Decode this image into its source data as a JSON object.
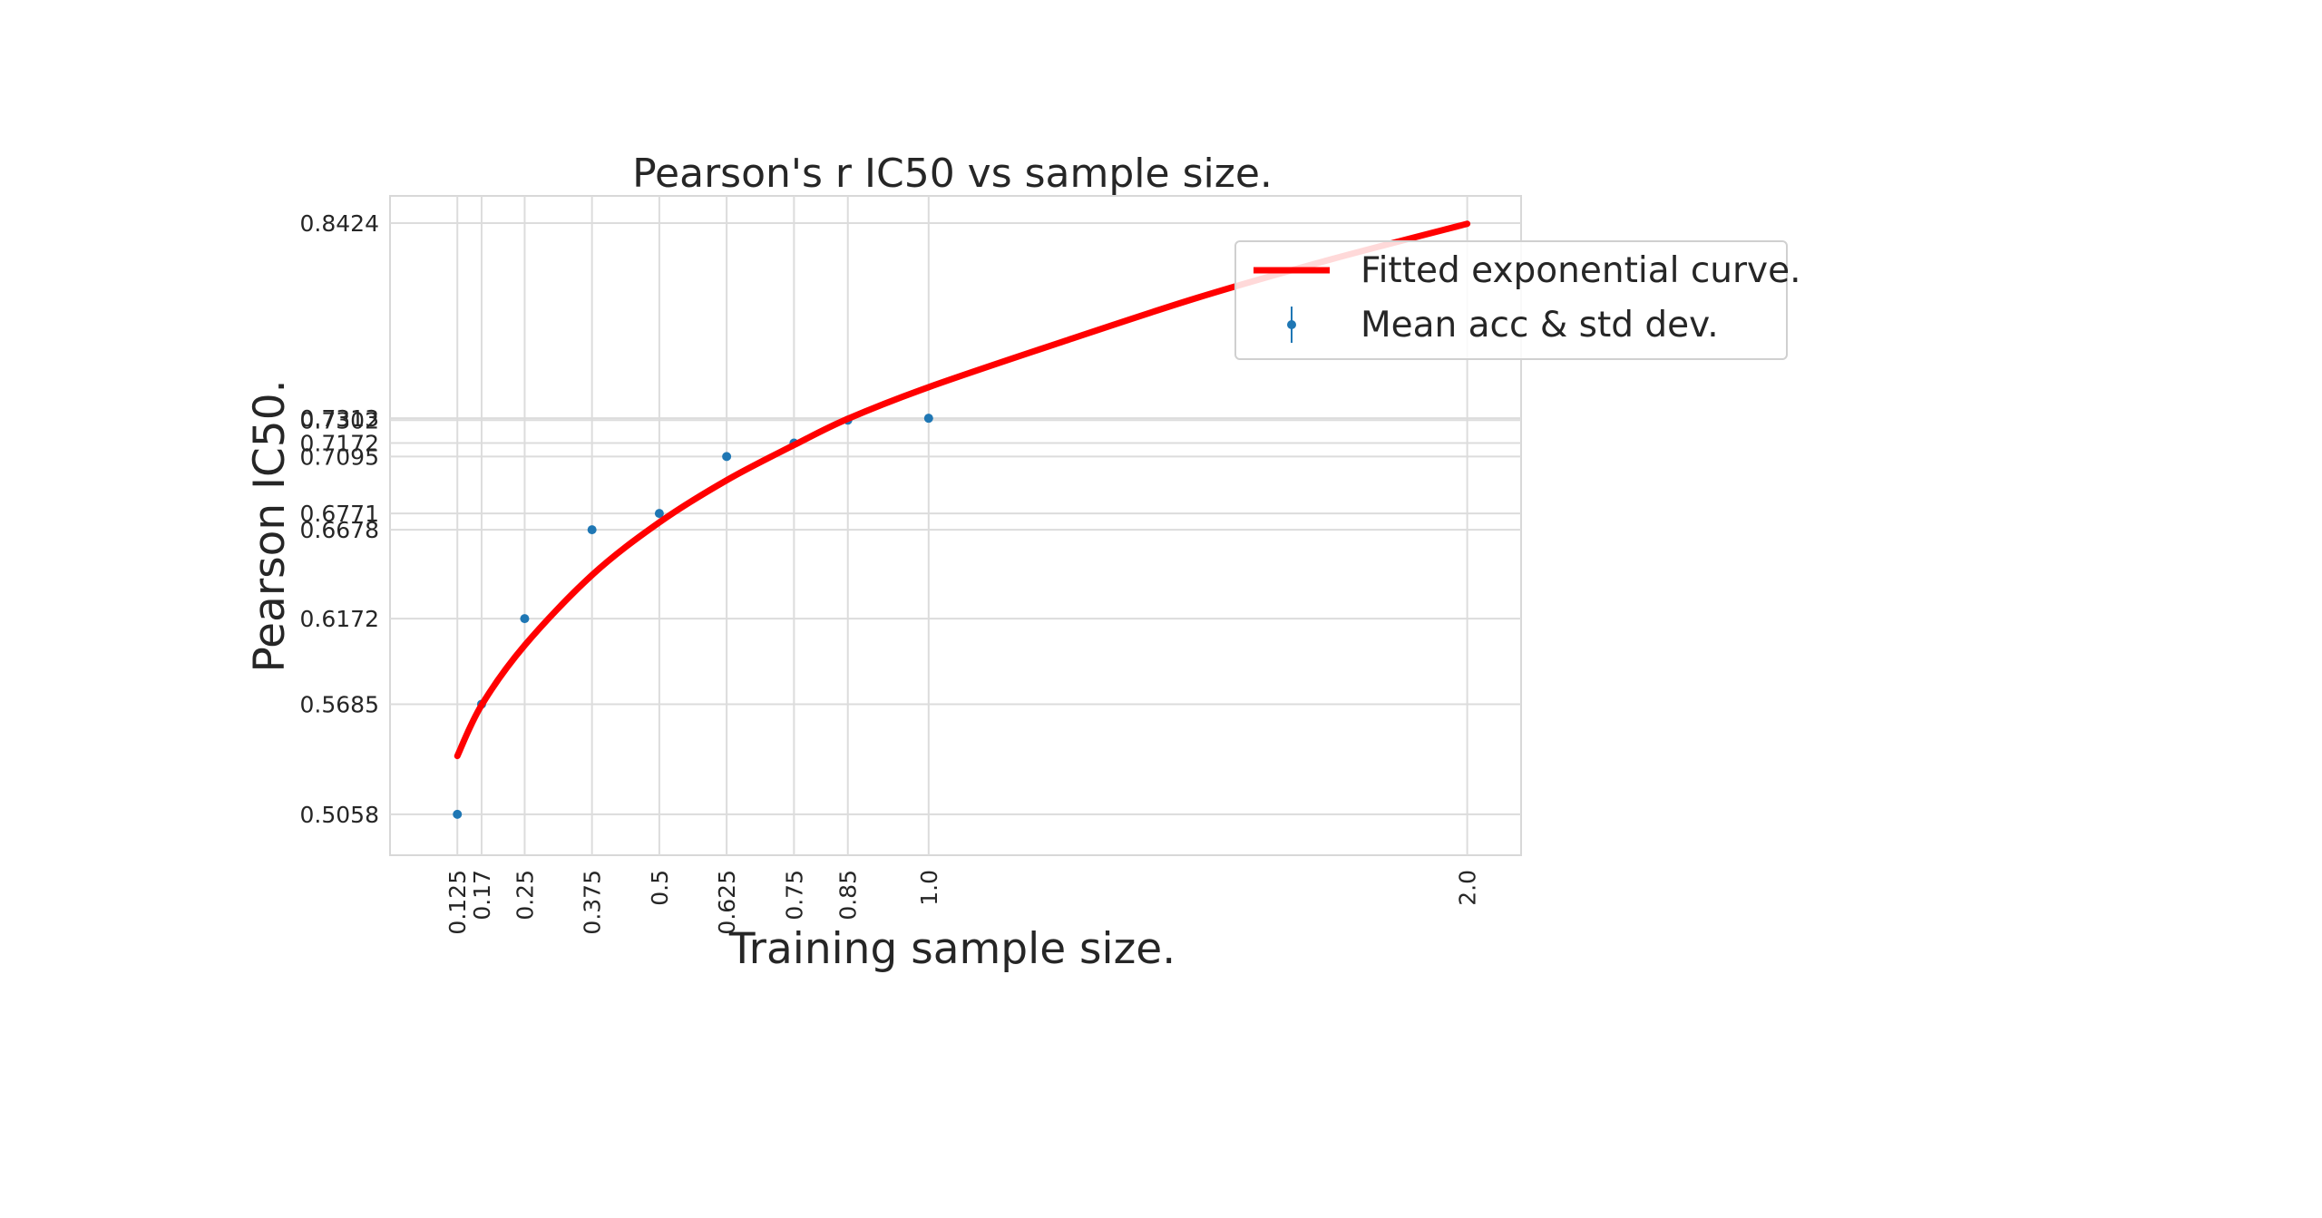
{
  "chart_data": {
    "type": "scatter",
    "title": "Pearson's r IC50 vs sample size.",
    "xlabel": "Training sample size.",
    "ylabel": "Pearson IC50.",
    "grid": true,
    "legend_position": "upper-right",
    "xlim": [
      0.0,
      2.1
    ],
    "ylim": [
      0.4825,
      0.8579
    ],
    "x_ticks": [
      0.125,
      0.17,
      0.25,
      0.375,
      0.5,
      0.625,
      0.75,
      0.85,
      1.0,
      2.0
    ],
    "x_tick_labels": [
      "0.125",
      "0.17",
      "0.25",
      "0.375",
      "0.5",
      "0.625",
      "0.75",
      "0.85",
      "1.0",
      "2.0"
    ],
    "y_ticks": [
      0.5058,
      0.5685,
      0.6172,
      0.6678,
      0.6771,
      0.7095,
      0.7172,
      0.7302,
      0.7313,
      0.8424
    ],
    "y_tick_labels": [
      "0.5058",
      "0.5685",
      "0.6172",
      "0.6678",
      "0.6771",
      "0.7095",
      "0.7172",
      "0.7302",
      "0.7313",
      "0.8424"
    ],
    "series": [
      {
        "name": "Mean acc & std dev.",
        "kind": "errorbar-points",
        "color": "#1f77b4",
        "x": [
          0.125,
          0.17,
          0.25,
          0.375,
          0.5,
          0.625,
          0.75,
          0.85,
          1.0
        ],
        "y": [
          0.5058,
          0.5685,
          0.6172,
          0.6678,
          0.6771,
          0.7095,
          0.7172,
          0.7302,
          0.7313
        ]
      },
      {
        "name": "Fitted exponential curve.",
        "kind": "line",
        "color": "#ff0000",
        "x": [
          0.125,
          0.17,
          0.25,
          0.375,
          0.5,
          0.625,
          0.75,
          0.85,
          1.0,
          1.25,
          1.5,
          1.75,
          2.0
        ],
        "y": [
          0.539,
          0.568,
          0.602,
          0.642,
          0.672,
          0.696,
          0.716,
          0.731,
          0.749,
          0.775,
          0.8,
          0.822,
          0.842
        ]
      }
    ]
  }
}
